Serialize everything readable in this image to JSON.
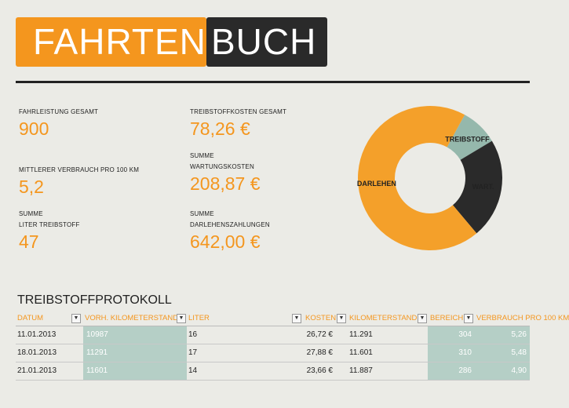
{
  "title": {
    "part1": "FAHRTEN",
    "part2": "BUCH"
  },
  "kpis": {
    "fahrleistung": {
      "label": "FAHRLEISTUNG GESAMT",
      "value": "900"
    },
    "treibstoffkosten": {
      "label": "TREIBSTOFFKOSTEN GESAMT",
      "value": "78,26 €"
    },
    "verbrauch": {
      "label": "MITTLERER VERBRAUCH PRO 100 KM",
      "value": "5,2"
    },
    "wartung": {
      "label1": "SUMME",
      "label2": "WARTUNGSKOSTEN",
      "value": "208,87 €"
    },
    "liter": {
      "label1": "SUMME",
      "label2": "LITER TREIBSTOFF",
      "value": "47"
    },
    "darlehen": {
      "label1": "SUMME",
      "label2": "DARLEHENSZAHLUNGEN",
      "value": "642,00 €"
    }
  },
  "chart_data": {
    "type": "pie",
    "categories": [
      "TREIBSTOFF",
      "WART.",
      "DARLEHEN"
    ],
    "values": [
      78.26,
      208.87,
      642.0
    ],
    "colors": [
      "#95b8ac",
      "#2a2a2a",
      "#f4a02a"
    ]
  },
  "table": {
    "title": "TREIBSTOFFPROTOKOLL",
    "headers": [
      "DATUM",
      "VORH. KILOMETERSTAND",
      "LITER",
      "KOSTEN",
      "KILOMETERSTAND",
      "BEREICH",
      "VERBRAUCH PRO 100 KM"
    ],
    "filter_icon": "chevron-down-icon",
    "rows": [
      [
        "11.01.2013",
        "10987",
        "16",
        "26,72 €",
        "11.291",
        "304",
        "5,26"
      ],
      [
        "18.01.2013",
        "11291",
        "17",
        "27,88 €",
        "11.601",
        "310",
        "5,48"
      ],
      [
        "21.01.2013",
        "11601",
        "14",
        "23,66 €",
        "11.887",
        "286",
        "4,90"
      ]
    ]
  },
  "colors": {
    "accent": "#f4961e",
    "dark": "#2a2a2a",
    "teal": "#b5cfc6",
    "background": "#ebebe6"
  }
}
